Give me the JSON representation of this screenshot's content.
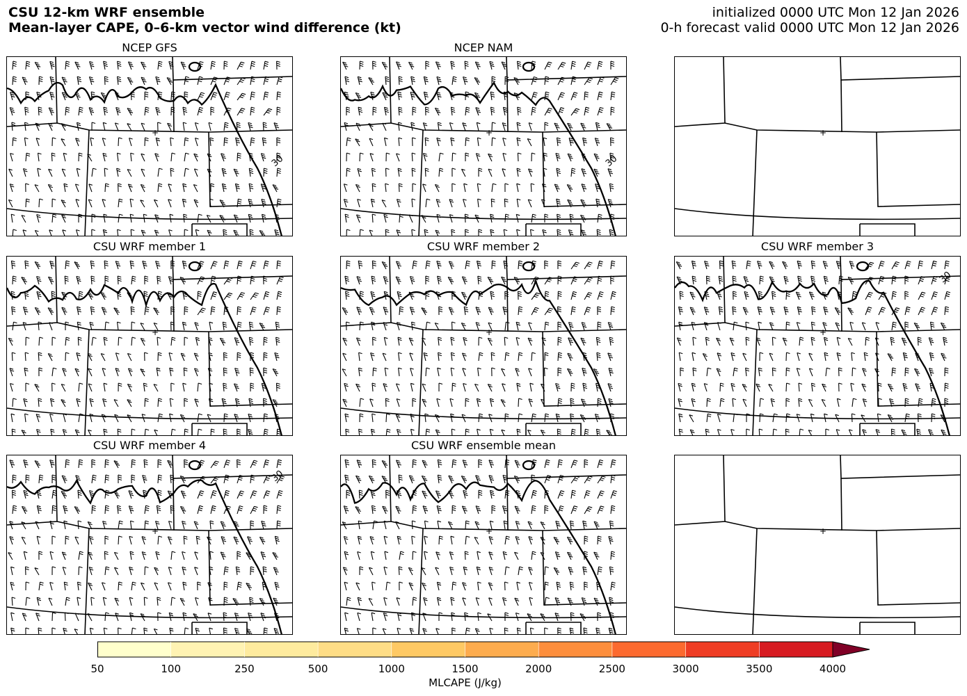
{
  "header": {
    "title_line1": "CSU 12-km WRF ensemble",
    "title_line2": "Mean-layer CAPE, 0–6-km vector wind difference (kt)",
    "init_line": "initialized 0000 UTC Mon 12 Jan 2026",
    "valid_line": "0-h forecast valid 0000 UTC Mon 12 Jan 2026"
  },
  "panels": [
    {
      "title": "NCEP GFS",
      "has_data": true,
      "contour_labels": [
        "30"
      ]
    },
    {
      "title": "NCEP NAM",
      "has_data": true,
      "contour_labels": [
        "30"
      ]
    },
    {
      "title": "",
      "has_data": false,
      "contour_labels": []
    },
    {
      "title": "CSU WRF member 1",
      "has_data": true,
      "contour_labels": []
    },
    {
      "title": "CSU WRF member 2",
      "has_data": true,
      "contour_labels": []
    },
    {
      "title": "CSU WRF member 3",
      "has_data": true,
      "contour_labels": [
        "30",
        "30"
      ]
    },
    {
      "title": "CSU WRF member 4",
      "has_data": true,
      "contour_labels": [
        "30",
        "30"
      ]
    },
    {
      "title": "CSU WRF ensemble mean",
      "has_data": true,
      "contour_labels": []
    },
    {
      "title": "",
      "has_data": false,
      "contour_labels": []
    }
  ],
  "colorbar": {
    "label": "MLCAPE (J/kg)",
    "ticks": [
      "50",
      "100",
      "250",
      "500",
      "1000",
      "1500",
      "2000",
      "2500",
      "3000",
      "3500",
      "4000"
    ],
    "colors": [
      "#ffffcc",
      "#fff3b3",
      "#feeb9e",
      "#fedd86",
      "#fec964",
      "#fdac4e",
      "#fd8e3c",
      "#fc6a2f",
      "#ef3d24",
      "#d71b21",
      "#b70026",
      "#800026"
    ],
    "extend": "max"
  },
  "map": {
    "contour_level_kt": 30
  }
}
